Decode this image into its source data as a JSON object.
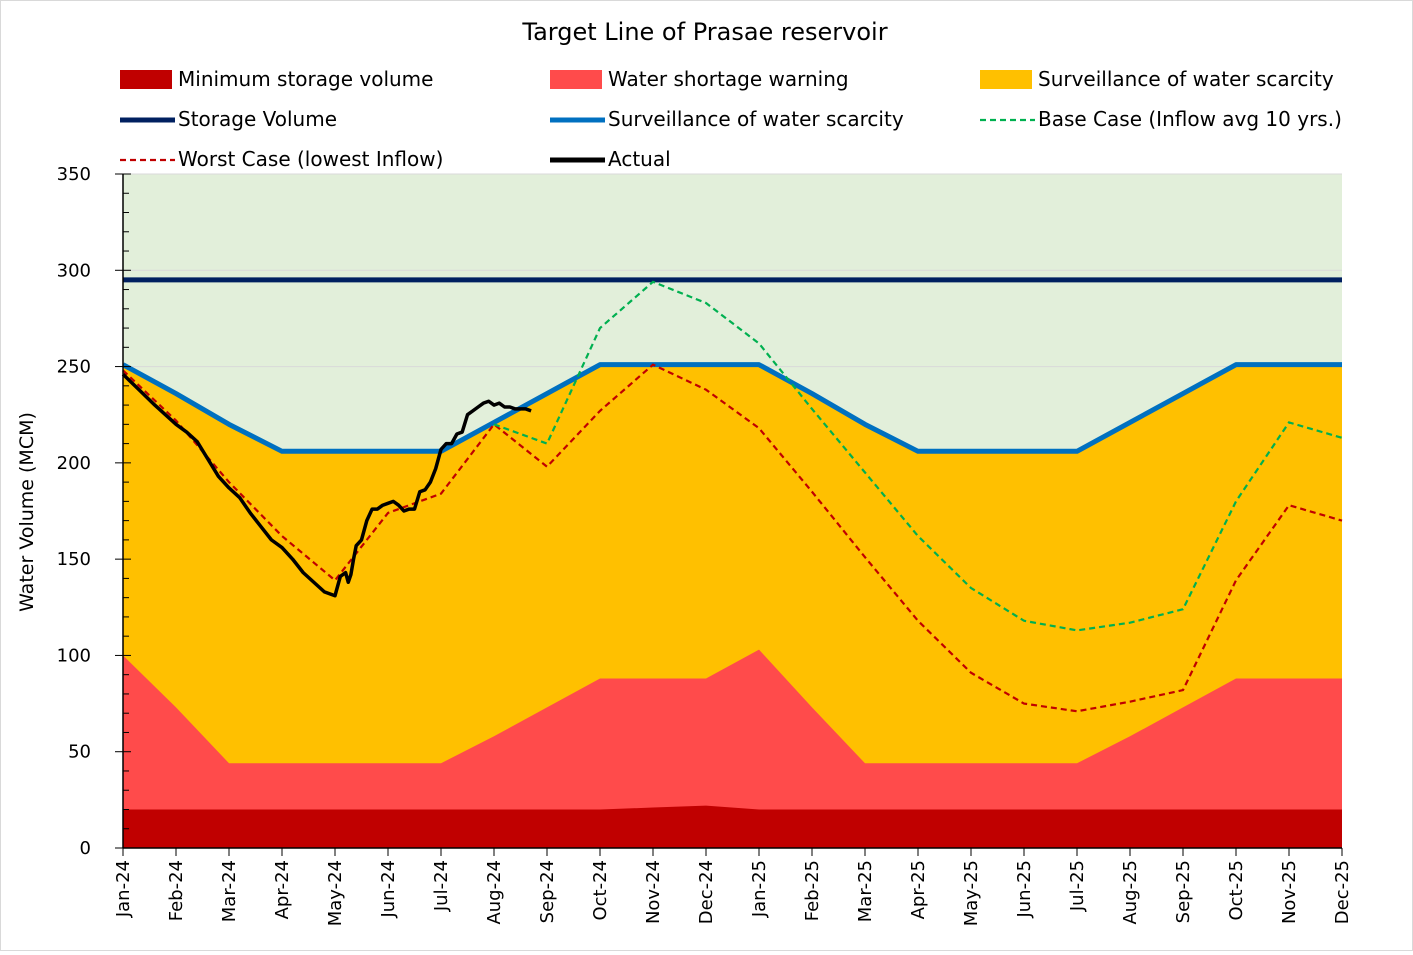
{
  "chart_data": {
    "type": "area",
    "title": "Target Line of Prasae reservoir",
    "ylabel": "Water Volume (MCM)",
    "xlabel": "",
    "ylim": [
      0,
      350
    ],
    "yticks": [
      0,
      50,
      100,
      150,
      200,
      250,
      300,
      350
    ],
    "grid": true,
    "legend_position": "top",
    "categories": [
      "Jan-24",
      "Feb-24",
      "Mar-24",
      "Apr-24",
      "May-24",
      "Jun-24",
      "Jul-24",
      "Aug-24",
      "Sep-24",
      "Oct-24",
      "Nov-24",
      "Dec-24",
      "Jan-25",
      "Feb-25",
      "Mar-25",
      "Apr-25",
      "May-25",
      "Jun-25",
      "Jul-25",
      "Aug-25",
      "Sep-25",
      "Oct-25",
      "Nov-25",
      "Dec-25"
    ],
    "colors": {
      "background_zone": "#e2efda",
      "minimum": "#c00000",
      "shortage": "#ff4b4b",
      "surveillance_area": "#ffc000",
      "storage": "#002060",
      "surveillance_line": "#0070c0",
      "base_case": "#00b050",
      "worst_case": "#c00000",
      "actual": "#000000",
      "grid": "#d9d9d9"
    },
    "series": [
      {
        "name": "Minimum storage volume",
        "kind": "area",
        "values": [
          20,
          20,
          20,
          20,
          20,
          20,
          20,
          20,
          20,
          20,
          21,
          22,
          20,
          20,
          20,
          20,
          20,
          20,
          20,
          20,
          20,
          20,
          20,
          20
        ]
      },
      {
        "name": "Water shortage warning",
        "kind": "area",
        "values": [
          100,
          73,
          44,
          44,
          44,
          44,
          44,
          58,
          73,
          88,
          88,
          88,
          103,
          73,
          44,
          44,
          44,
          44,
          44,
          58,
          73,
          88,
          88,
          88
        ]
      },
      {
        "name": "Surveillance of water scarcity",
        "kind": "area",
        "values": [
          251,
          236,
          220,
          206,
          206,
          206,
          206,
          221,
          236,
          251,
          251,
          251,
          251,
          236,
          220,
          206,
          206,
          206,
          206,
          221,
          236,
          251,
          251,
          251
        ]
      },
      {
        "name": "Storage Volume",
        "kind": "line",
        "values": [
          295,
          295,
          295,
          295,
          295,
          295,
          295,
          295,
          295,
          295,
          295,
          295,
          295,
          295,
          295,
          295,
          295,
          295,
          295,
          295,
          295,
          295,
          295,
          295
        ]
      },
      {
        "name": "Surveillance of water scarcity",
        "kind": "line",
        "values": [
          251,
          236,
          220,
          206,
          206,
          206,
          206,
          221,
          236,
          251,
          251,
          251,
          251,
          236,
          220,
          206,
          206,
          206,
          206,
          221,
          236,
          251,
          251,
          251
        ]
      },
      {
        "name": "Base Case (Inflow avg 10 yrs.)",
        "kind": "dashed",
        "x": [
          "Aug-24",
          "Sep-24",
          "Oct-24",
          "Nov-24",
          "Dec-24",
          "Jan-25",
          "Feb-25",
          "Mar-25",
          "Apr-25",
          "May-25",
          "Jun-25",
          "Jul-25",
          "Aug-25",
          "Sep-25",
          "Oct-25",
          "Nov-25",
          "Dec-25"
        ],
        "values": [
          220,
          210,
          270,
          294,
          283,
          262,
          228,
          195,
          162,
          135,
          118,
          113,
          117,
          124,
          180,
          221,
          213
        ]
      },
      {
        "name": "Worst Case (lowest Inflow)",
        "kind": "dashed",
        "x": [
          "Jan-24",
          "Feb-24",
          "Mar-24",
          "Apr-24",
          "May-24",
          "Jun-24",
          "Jul-24",
          "Aug-24",
          "Sep-24",
          "Oct-24",
          "Nov-24",
          "Dec-24",
          "Jan-25",
          "Feb-25",
          "Mar-25",
          "Apr-25",
          "May-25",
          "Jun-25",
          "Jul-25",
          "Aug-25",
          "Sep-25",
          "Oct-25",
          "Nov-25",
          "Dec-25"
        ],
        "values": [
          248,
          222,
          190,
          162,
          139,
          174,
          184,
          220,
          198,
          227,
          251,
          238,
          218,
          185,
          151,
          118,
          91,
          75,
          71,
          76,
          82,
          139,
          178,
          170
        ]
      },
      {
        "name": "Actual",
        "kind": "line",
        "x": [
          0,
          0.3,
          0.6,
          0.8,
          1.0,
          1.2,
          1.4,
          1.6,
          1.8,
          2.0,
          2.2,
          2.4,
          2.6,
          2.8,
          3.0,
          3.2,
          3.4,
          3.6,
          3.8,
          4.0,
          4.1,
          4.2,
          4.25,
          4.3,
          4.35,
          4.4,
          4.5,
          4.6,
          4.7,
          4.8,
          4.9,
          5.0,
          5.1,
          5.2,
          5.3,
          5.4,
          5.5,
          5.6,
          5.7,
          5.8,
          5.9,
          6.0,
          6.1,
          6.2,
          6.3,
          6.4,
          6.5,
          6.6,
          6.7,
          6.8,
          6.9,
          7.0,
          7.1,
          7.2,
          7.3,
          7.4,
          7.5,
          7.6,
          7.7
        ],
        "values": [
          246,
          238,
          230,
          225,
          220,
          216,
          211,
          202,
          193,
          187,
          182,
          174,
          167,
          160,
          156,
          150,
          143,
          138,
          133,
          131,
          141,
          143,
          138,
          142,
          150,
          157,
          160,
          170,
          176,
          176,
          178,
          179,
          180,
          178,
          175,
          176,
          176,
          185,
          186,
          190,
          197,
          207,
          210,
          210,
          215,
          216,
          225,
          227,
          229,
          231,
          232,
          230,
          231,
          229,
          229,
          228,
          228,
          228,
          227
        ]
      }
    ]
  }
}
